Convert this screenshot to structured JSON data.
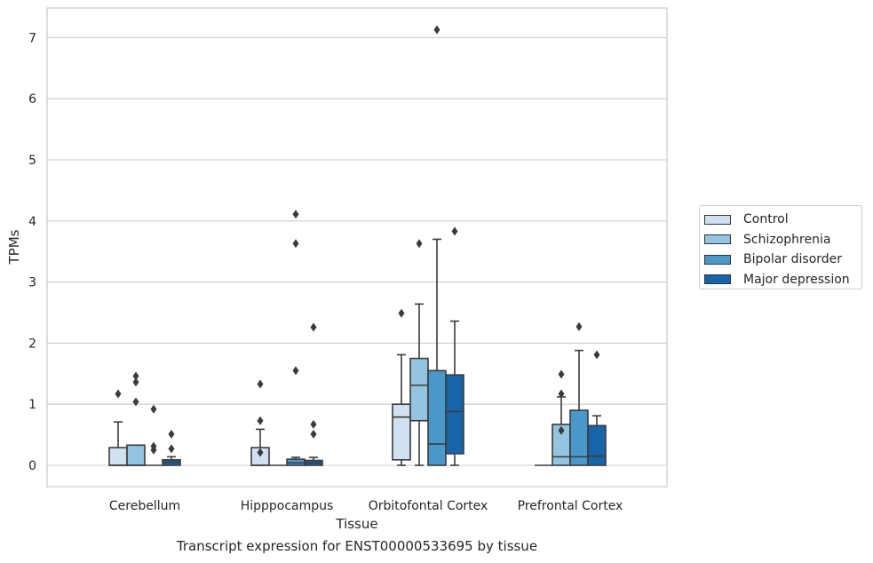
{
  "chart_data": {
    "type": "boxplot",
    "title": "",
    "xlabel": "Tissue",
    "ylabel": "TPMs",
    "ylim": [
      -0.35,
      7.5
    ],
    "yticks": [
      0,
      1,
      2,
      3,
      4,
      5,
      6,
      7
    ],
    "grid": true,
    "legend_position": "right",
    "categories": [
      "Cerebellum",
      "Hipppocampus",
      "Orbitofontal Cortex",
      "Prefrontal Cortex"
    ],
    "series": [
      {
        "name": "Control",
        "color": "#d0e1f2",
        "boxes": [
          {
            "whislo": 0,
            "q1": 0,
            "med": 0,
            "q3": 0.29,
            "whishi": 0.71,
            "fliers": [
              1.17
            ]
          },
          {
            "whislo": 0,
            "q1": 0,
            "med": 0,
            "q3": 0.29,
            "whishi": 0.59,
            "fliers": [
              1.33,
              0.73,
              0.21
            ]
          },
          {
            "whislo": 0,
            "q1": 0.09,
            "med": 0.79,
            "q3": 1.0,
            "whishi": 1.81,
            "fliers": [
              2.49
            ]
          },
          {
            "whislo": 0,
            "q1": 0,
            "med": 0,
            "q3": 0,
            "whishi": 0,
            "fliers": []
          }
        ]
      },
      {
        "name": "Schizophrenia",
        "color": "#94c4df",
        "boxes": [
          {
            "whislo": 0,
            "q1": 0,
            "med": 0,
            "q3": 0.33,
            "whishi": 0.33,
            "fliers": [
              1.46,
              1.36,
              1.04
            ]
          },
          {
            "whislo": 0,
            "q1": 0,
            "med": 0,
            "q3": 0,
            "whishi": 0,
            "fliers": []
          },
          {
            "whislo": 0,
            "q1": 0.73,
            "med": 1.31,
            "q3": 1.75,
            "whishi": 2.64,
            "fliers": [
              3.63
            ]
          },
          {
            "whislo": 0,
            "q1": 0,
            "med": 0.14,
            "q3": 0.67,
            "whishi": 1.12,
            "fliers": [
              1.49,
              1.17,
              0.57
            ]
          }
        ]
      },
      {
        "name": "Bipolar disorder",
        "color": "#4a98c9",
        "boxes": [
          {
            "whislo": 0,
            "q1": 0,
            "med": 0,
            "q3": 0,
            "whishi": 0,
            "fliers": [
              0.92,
              0.31,
              0.25
            ]
          },
          {
            "whislo": 0,
            "q1": 0,
            "med": 0.04,
            "q3": 0.1,
            "whishi": 0.13,
            "fliers": [
              4.11,
              3.63,
              1.55
            ]
          },
          {
            "whislo": 0,
            "q1": 0,
            "med": 0.35,
            "q3": 1.55,
            "whishi": 3.7,
            "fliers": [
              7.13
            ]
          },
          {
            "whislo": 0,
            "q1": 0,
            "med": 0.14,
            "q3": 0.9,
            "whishi": 1.88,
            "fliers": [
              2.27
            ]
          }
        ]
      },
      {
        "name": "Major depression",
        "color": "#1764ab",
        "boxes": [
          {
            "whislo": 0,
            "q1": 0,
            "med": 0.05,
            "q3": 0.09,
            "whishi": 0.14,
            "fliers": [
              0.51,
              0.27
            ]
          },
          {
            "whislo": 0,
            "q1": 0,
            "med": 0.04,
            "q3": 0.08,
            "whishi": 0.13,
            "fliers": [
              2.26,
              0.67,
              0.51
            ]
          },
          {
            "whislo": 0,
            "q1": 0.19,
            "med": 0.88,
            "q3": 1.48,
            "whishi": 2.36,
            "fliers": [
              3.83
            ]
          },
          {
            "whislo": 0,
            "q1": 0,
            "med": 0.15,
            "q3": 0.65,
            "whishi": 0.81,
            "fliers": [
              1.81
            ]
          }
        ]
      }
    ]
  },
  "caption": "Transcript expression for ENST00000533695 by tissue"
}
